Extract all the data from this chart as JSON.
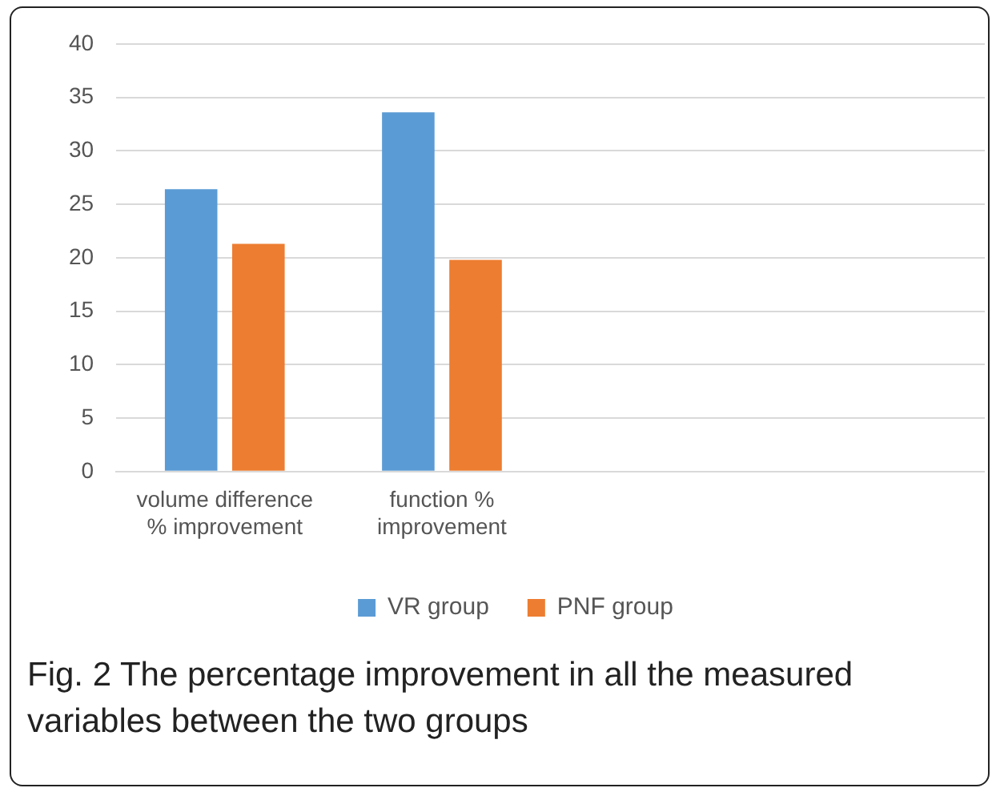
{
  "chart_data": {
    "type": "bar",
    "categories": [
      "volume difference % improvement",
      "function % improvement",
      null,
      null
    ],
    "series": [
      {
        "name": "VR group",
        "color": "#5b9bd5",
        "values": [
          26.4,
          33.6,
          null,
          null
        ]
      },
      {
        "name": "PNF group",
        "color": "#ed7d31",
        "values": [
          21.3,
          19.8,
          null,
          null
        ]
      }
    ],
    "ylim": [
      0,
      40
    ],
    "yticks": [
      0,
      5,
      10,
      15,
      20,
      25,
      30,
      35,
      40
    ],
    "grid": "y",
    "legend": "bottom",
    "annotations": [
      "Fig. 2 The percentage improvement in all the measured variables between the two groups"
    ]
  }
}
